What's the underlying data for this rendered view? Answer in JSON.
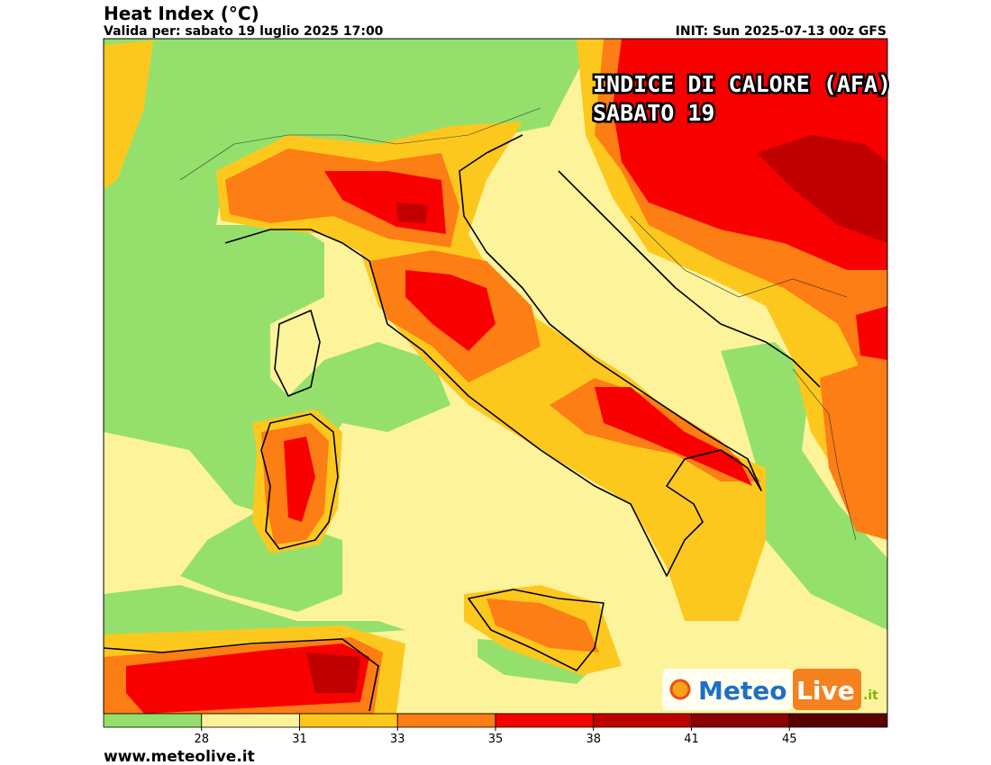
{
  "header": {
    "title": "Heat Index (°C)",
    "subtitle": "Valida per: sabato 19 luglio 2025 17:00",
    "init": "INIT: Sun 2025-07-13 00z GFS"
  },
  "overlay": {
    "line1": "INDICE DI CALORE (AFA)",
    "line2": "SABATO 19"
  },
  "logo": {
    "meteo": "Meteo",
    "live": "Live",
    "tld": ".it"
  },
  "legend": {
    "colors": [
      "#95e06c",
      "#fdf39b",
      "#fdc81e",
      "#fd7e14",
      "#f80000",
      "#c00000",
      "#8b0000",
      "#5a0000"
    ],
    "ticks": [
      28,
      31,
      33,
      35,
      38,
      41,
      45
    ]
  },
  "footer": {
    "site": "www.meteolive.it"
  }
}
